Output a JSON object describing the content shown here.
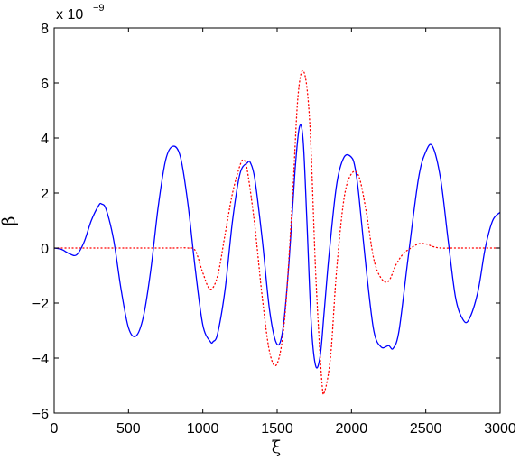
{
  "chart_data": {
    "type": "line",
    "xlabel": "ξ",
    "ylabel": "β",
    "xlim": [
      0,
      3000
    ],
    "ylim": [
      -6,
      8
    ],
    "x_ticks": [
      0,
      500,
      1000,
      1500,
      2000,
      2500,
      3000
    ],
    "y_ticks": [
      -6,
      -4,
      -2,
      0,
      2,
      4,
      6,
      8
    ],
    "x_tick_labels": [
      "0",
      "500",
      "1000",
      "1500",
      "2000",
      "2500",
      "3000"
    ],
    "y_tick_labels": [
      "−6",
      "−4",
      "−2",
      "0",
      "2",
      "4",
      "6",
      "8"
    ],
    "y_multiplier": {
      "base": "x 10",
      "exponent": "−9"
    },
    "grid": false,
    "legend": "none",
    "series": [
      {
        "style": "solid",
        "color": "#0000ff",
        "x": [
          0,
          50,
          100,
          150,
          200,
          250,
          300,
          320,
          350,
          400,
          450,
          500,
          550,
          600,
          650,
          700,
          750,
          800,
          850,
          900,
          950,
          1000,
          1050,
          1070,
          1100,
          1150,
          1200,
          1250,
          1300,
          1320,
          1350,
          1400,
          1450,
          1500,
          1540,
          1580,
          1620,
          1650,
          1675,
          1700,
          1730,
          1760,
          1790,
          1815,
          1850,
          1900,
          1950,
          2000,
          2025,
          2050,
          2100,
          2150,
          2200,
          2250,
          2280,
          2320,
          2380,
          2450,
          2500,
          2545,
          2600,
          2650,
          2700,
          2750,
          2790,
          2850,
          2900,
          2950,
          3000
        ],
        "y": [
          0.0,
          -0.05,
          -0.2,
          -0.25,
          0.2,
          1.0,
          1.55,
          1.6,
          1.4,
          0.3,
          -1.5,
          -2.9,
          -3.2,
          -2.5,
          -0.8,
          1.5,
          3.2,
          3.7,
          3.3,
          1.6,
          -0.8,
          -2.8,
          -3.4,
          -3.4,
          -3.1,
          -1.5,
          1.0,
          2.7,
          3.1,
          3.1,
          2.5,
          0.3,
          -2.3,
          -3.5,
          -2.9,
          -0.5,
          2.8,
          4.4,
          3.9,
          1.0,
          -2.8,
          -4.3,
          -3.9,
          -2.4,
          -0.2,
          2.3,
          3.3,
          3.3,
          2.9,
          1.9,
          -0.8,
          -3.0,
          -3.6,
          -3.55,
          -3.65,
          -3.0,
          -0.4,
          2.5,
          3.5,
          3.7,
          2.5,
          0.3,
          -1.8,
          -2.6,
          -2.6,
          -1.6,
          0.0,
          1.0,
          1.3
        ]
      },
      {
        "style": "dotted",
        "color": "#ff0000",
        "x": [
          0,
          100,
          200,
          300,
          400,
          500,
          600,
          700,
          800,
          900,
          950,
          1000,
          1050,
          1100,
          1150,
          1200,
          1250,
          1275,
          1300,
          1350,
          1400,
          1450,
          1500,
          1550,
          1600,
          1640,
          1680,
          1720,
          1760,
          1800,
          1820,
          1860,
          1900,
          1950,
          2000,
          2050,
          2100,
          2150,
          2200,
          2250,
          2300,
          2350,
          2400,
          2450,
          2500,
          2550,
          2600,
          2700,
          2800,
          2900,
          3000
        ],
        "y": [
          0,
          0,
          0,
          0,
          0,
          0,
          0,
          0,
          0,
          0,
          -0.1,
          -0.9,
          -1.5,
          -1.0,
          0.5,
          2.0,
          3.0,
          3.2,
          2.8,
          0.8,
          -1.8,
          -3.8,
          -4.2,
          -2.6,
          1.5,
          5.5,
          6.4,
          4.5,
          -1.0,
          -4.8,
          -5.2,
          -3.9,
          -0.8,
          1.8,
          2.7,
          2.6,
          1.3,
          -0.4,
          -1.1,
          -1.2,
          -0.6,
          -0.2,
          0.0,
          0.15,
          0.15,
          0.05,
          0,
          0,
          0,
          0,
          0
        ]
      }
    ]
  }
}
